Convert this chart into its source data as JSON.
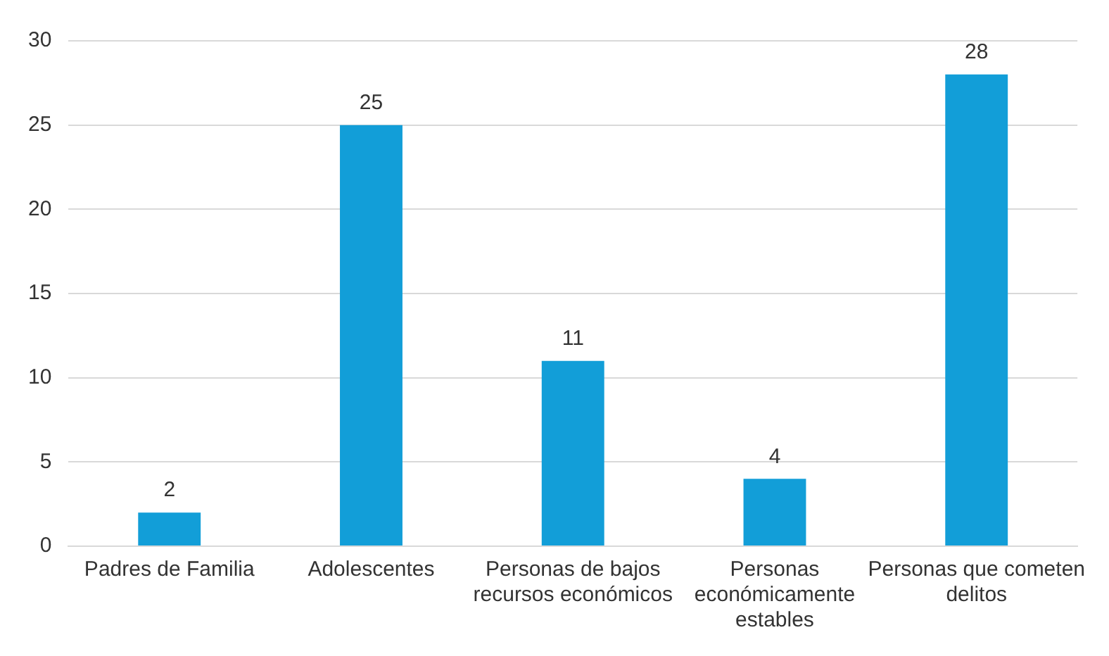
{
  "chart_data": {
    "type": "bar",
    "categories": [
      "Padres de Familia",
      "Adolescentes",
      "Personas de bajos recursos económicos",
      "Personas económicamente estables",
      "Personas que cometen delitos"
    ],
    "values": [
      2,
      25,
      11,
      4,
      28
    ],
    "color": "#129ed8",
    "ylim": [
      0,
      30
    ],
    "yticks": [
      0,
      5,
      10,
      15,
      20,
      25,
      30
    ],
    "grid": "y",
    "data_labels": true,
    "legend": false
  }
}
